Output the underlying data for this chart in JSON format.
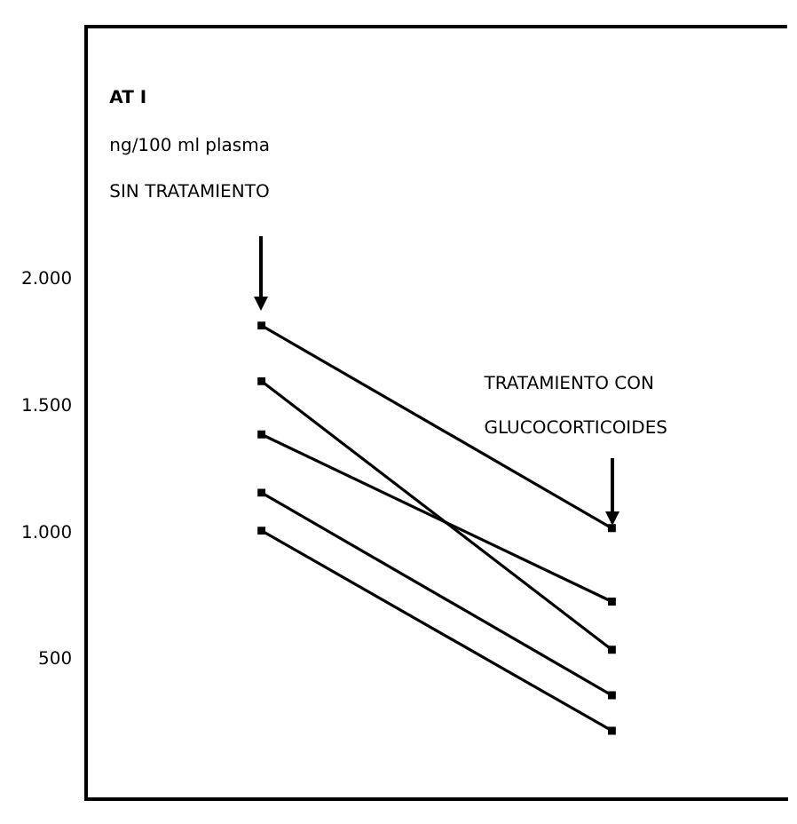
{
  "chart_data": {
    "type": "line",
    "title": "AT I",
    "subtitle": "ng/100 ml plasma",
    "annotations": [
      "SIN TRATAMIENTO",
      "TRATAMIENTO CON GLUCOCORTICOIDES"
    ],
    "categories": [
      null,
      null
    ],
    "series": [
      {
        "color": "#000000",
        "values": [
          1820,
          1020
        ]
      },
      {
        "color": "#000000",
        "values": [
          1600,
          540
        ]
      },
      {
        "color": "#000000",
        "values": [
          1390,
          730
        ]
      },
      {
        "color": "#000000",
        "values": [
          1160,
          360
        ]
      },
      {
        "color": "#000000",
        "values": [
          1010,
          220
        ]
      }
    ],
    "ylim": [
      -50,
      3000
    ],
    "yticks": [
      {
        "value": 500,
        "label": "500"
      },
      {
        "value": 1000,
        "label": "1.000"
      },
      {
        "value": 1500,
        "label": "1.500"
      },
      {
        "value": 2000,
        "label": "2.000"
      }
    ],
    "tick_labels": "y",
    "grid": false,
    "legend": false,
    "marker": "square",
    "line_style": "solid"
  }
}
